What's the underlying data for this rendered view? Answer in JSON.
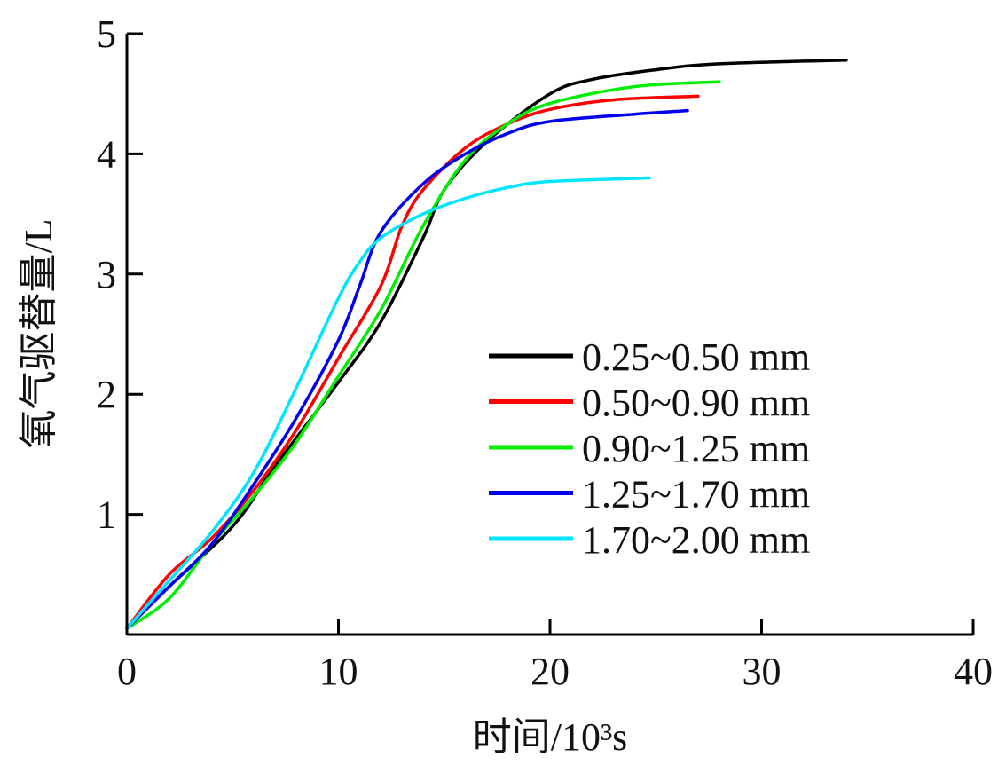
{
  "chart_data": {
    "type": "line",
    "title": "",
    "xlabel": "时间/10³s",
    "ylabel": "氧气驱替量/L",
    "xlim": [
      0,
      40
    ],
    "ylim": [
      0,
      5
    ],
    "xticks": [
      0,
      10,
      20,
      30,
      40
    ],
    "yticks": [
      1,
      2,
      3,
      4,
      5
    ],
    "xtick_labels": [
      "0",
      "10",
      "20",
      "30",
      "40"
    ],
    "ytick_labels": [
      "1",
      "2",
      "3",
      "4",
      "5"
    ],
    "grid": false,
    "legend_position": "center-right",
    "series": [
      {
        "name": "0.25~0.50 mm",
        "color": "#000000",
        "x": [
          0,
          2,
          5,
          7,
          10,
          12,
          14,
          15,
          17,
          20,
          22,
          25,
          28,
          34
        ],
        "y": [
          0.05,
          0.4,
          0.9,
          1.4,
          2.1,
          2.6,
          3.3,
          3.7,
          4.1,
          4.5,
          4.62,
          4.7,
          4.75,
          4.78
        ]
      },
      {
        "name": "0.50~0.90 mm",
        "color": "#ff0000",
        "x": [
          0,
          2,
          4,
          6,
          8,
          10,
          12,
          13,
          14,
          16,
          18,
          20,
          23,
          27
        ],
        "y": [
          0.05,
          0.5,
          0.8,
          1.2,
          1.7,
          2.3,
          2.9,
          3.4,
          3.7,
          4.05,
          4.25,
          4.37,
          4.45,
          4.48
        ]
      },
      {
        "name": "0.90~1.25 mm",
        "color": "#00ee00",
        "x": [
          0,
          2,
          4,
          6,
          8,
          10,
          12,
          14,
          16,
          18,
          20,
          24,
          28
        ],
        "y": [
          0.05,
          0.3,
          0.75,
          1.15,
          1.6,
          2.15,
          2.7,
          3.4,
          3.95,
          4.25,
          4.42,
          4.56,
          4.6
        ]
      },
      {
        "name": "1.25~1.70 mm",
        "color": "#0000ee",
        "x": [
          0,
          2,
          4,
          6,
          8,
          10,
          11,
          12,
          14,
          16,
          18,
          20,
          24,
          26.5
        ],
        "y": [
          0.05,
          0.4,
          0.75,
          1.25,
          1.8,
          2.45,
          2.9,
          3.35,
          3.75,
          4.0,
          4.17,
          4.27,
          4.33,
          4.36
        ]
      },
      {
        "name": "1.70~2.00 mm",
        "color": "#00e5ff",
        "x": [
          0,
          2,
          4,
          6,
          8,
          10,
          11,
          12,
          14,
          16,
          18,
          20,
          24.7
        ],
        "y": [
          0.05,
          0.45,
          0.85,
          1.35,
          2.05,
          2.8,
          3.1,
          3.3,
          3.5,
          3.63,
          3.72,
          3.77,
          3.8
        ]
      }
    ]
  }
}
